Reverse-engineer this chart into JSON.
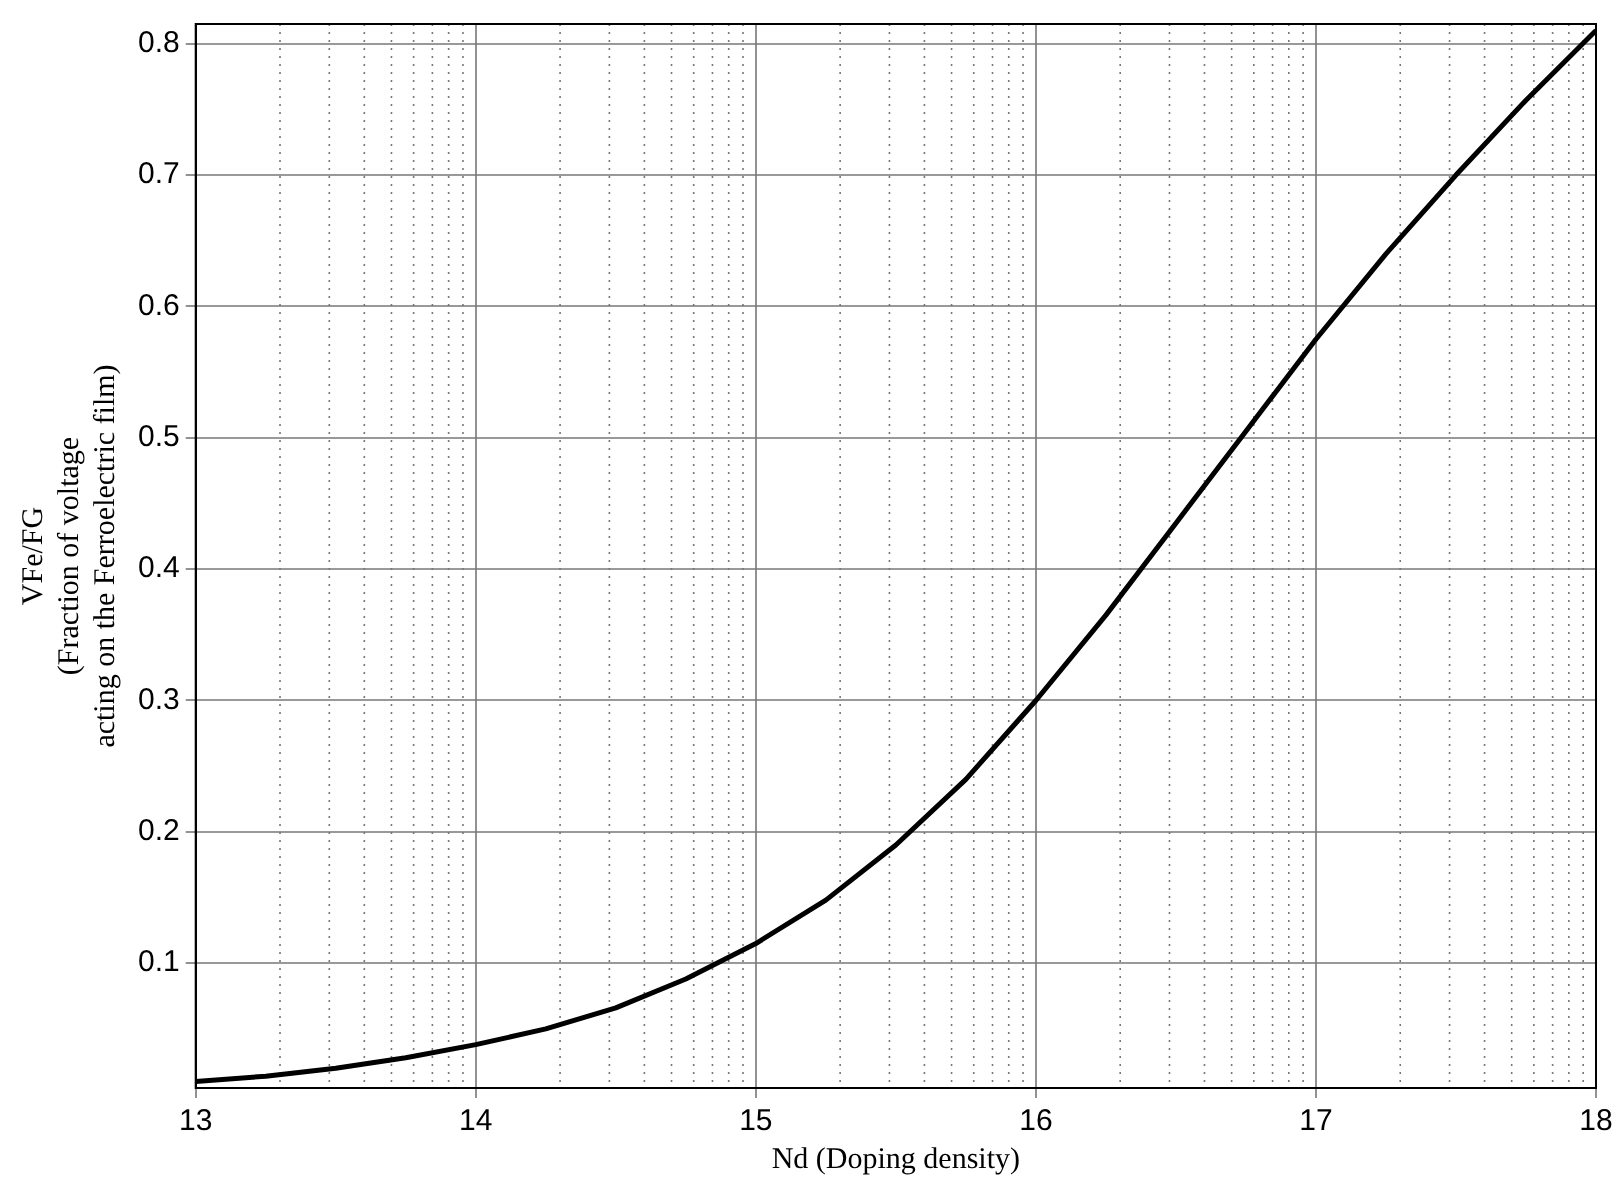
{
  "chart_data": {
    "type": "line",
    "xlabel": "Nd (Doping density)",
    "ylabel": "VFe/FG\n(Fraction of voltage\nacting on the Ferroelectric film)",
    "x": [
      13,
      13.25,
      13.5,
      13.75,
      14,
      14.25,
      14.5,
      14.75,
      15,
      15.25,
      15.5,
      15.75,
      16,
      16.25,
      16.5,
      16.75,
      17,
      17.25,
      17.5,
      17.75,
      18
    ],
    "series": [
      {
        "color": "#000000",
        "values": [
          0.01,
          0.014,
          0.02,
          0.028,
          0.038,
          0.05,
          0.066,
          0.088,
          0.115,
          0.148,
          0.19,
          0.24,
          0.3,
          0.365,
          0.435,
          0.505,
          0.575,
          0.64,
          0.7,
          0.757,
          0.81
        ]
      }
    ],
    "xlim": [
      13,
      18
    ],
    "xticks": [
      13,
      14,
      15,
      16,
      17,
      18
    ],
    "ylim": [
      0.005,
      0.815
    ],
    "yticks": [
      0.1,
      0.2,
      0.3,
      0.4,
      0.5,
      0.6,
      0.7,
      0.8
    ],
    "grid": true,
    "legend": false,
    "marker": "none",
    "line_style": "solid"
  }
}
